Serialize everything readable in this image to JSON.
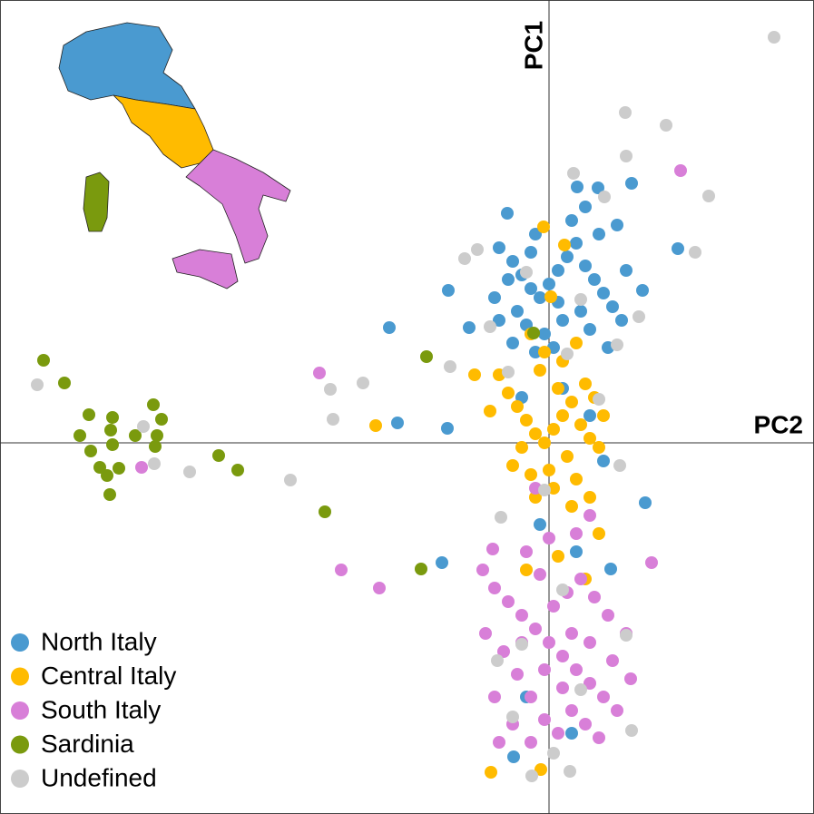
{
  "chart_data": {
    "type": "scatter",
    "x_label": "PC2",
    "y_label": "PC1",
    "xlim": [
      -6.05,
      2.92
    ],
    "ylim": [
      -4.09,
      4.88
    ],
    "legend": "bottom-left",
    "series": [
      {
        "name": "North Italy",
        "color": "#4a9ad0",
        "x": [
          -1.76,
          -1.67,
          -1.12,
          -1.18,
          1.06,
          1.42,
          0.91,
          -0.46,
          -1.11,
          -0.88,
          0.31,
          0.54,
          0.68,
          0.25,
          -0.39,
          -0.25,
          -0.55,
          -0.4,
          -0.3,
          -0.2,
          -0.1,
          0.0,
          0.1,
          0.2,
          0.3,
          0.4,
          0.5,
          0.6,
          0.7,
          0.8,
          0.55,
          0.25,
          -0.15,
          -0.45,
          -0.6,
          -0.35,
          -0.25,
          -0.05,
          0.15,
          0.35,
          0.45,
          0.65,
          0.05,
          -0.15,
          -0.4,
          -0.55,
          0.1,
          -0.2,
          0.4,
          1.03,
          0.85,
          0.75,
          0.15,
          -0.3,
          0.45,
          0.6,
          -0.1,
          0.3
        ],
        "y": [
          1.27,
          0.22,
          0.16,
          -1.32,
          -0.66,
          2.14,
          2.86,
          2.53,
          1.68,
          1.27,
          2.82,
          2.81,
          -1.39,
          -3.2,
          -3.46,
          -2.8,
          2.15,
          2.0,
          1.85,
          1.7,
          1.6,
          1.75,
          1.9,
          2.05,
          2.2,
          1.95,
          1.8,
          1.65,
          1.5,
          1.35,
          2.3,
          2.45,
          2.3,
          1.8,
          1.6,
          1.45,
          1.3,
          1.2,
          1.35,
          1.45,
          1.25,
          1.05,
          1.05,
          1.0,
          1.1,
          1.35,
          1.55,
          2.1,
          2.6,
          1.68,
          1.9,
          2.4,
          0.6,
          0.5,
          0.3,
          -0.2,
          -0.9,
          -1.2
        ]
      },
      {
        "name": "Central Italy",
        "color": "#ffbb00",
        "x": [
          -1.91,
          -0.82,
          -0.64,
          -0.09,
          -0.06,
          0.17,
          0.02,
          -0.45,
          -0.35,
          -0.25,
          -0.15,
          -0.05,
          0.05,
          0.15,
          0.25,
          0.35,
          0.45,
          0.55,
          0.6,
          -0.3,
          -0.4,
          -0.2,
          0.0,
          0.2,
          0.3,
          0.1,
          -0.1,
          -0.55,
          0.4,
          0.05,
          -0.15,
          0.25,
          0.45,
          -0.05,
          0.15,
          -0.2,
          0.3,
          -0.25,
          0.1,
          0.4,
          0.55,
          -0.65,
          0.5
        ],
        "y": [
          0.19,
          0.75,
          -3.63,
          -3.6,
          2.38,
          2.18,
          1.61,
          0.55,
          0.4,
          0.25,
          0.1,
          0.0,
          0.15,
          0.3,
          0.45,
          0.2,
          0.05,
          -0.05,
          0.3,
          -0.05,
          -0.25,
          -0.35,
          -0.3,
          -0.15,
          -0.4,
          0.6,
          0.8,
          0.75,
          0.65,
          -0.5,
          -0.6,
          -0.7,
          -0.6,
          1.0,
          0.9,
          1.2,
          1.1,
          -1.4,
          -1.25,
          -1.5,
          -1.0,
          0.35,
          0.5
        ]
      },
      {
        "name": "South Italy",
        "color": "#d87fd8",
        "x": [
          1.45,
          -2.53,
          -4.49,
          -2.29,
          -1.87,
          1.13,
          -0.62,
          -0.73,
          -0.6,
          -0.45,
          -0.3,
          -0.15,
          0.0,
          0.15,
          0.3,
          0.45,
          0.6,
          0.75,
          -0.5,
          -0.35,
          -0.2,
          -0.05,
          0.1,
          0.25,
          0.4,
          0.55,
          0.7,
          0.85,
          0.65,
          0.5,
          0.35,
          0.2,
          0.05,
          -0.1,
          -0.25,
          0.0,
          0.3,
          -0.6,
          -0.4,
          -0.2,
          0.15,
          -0.05,
          0.25,
          -0.3,
          0.9,
          -0.7,
          -0.55,
          0.45,
          -0.15,
          0.45
        ],
        "y": [
          3.0,
          0.77,
          -0.27,
          -1.4,
          -1.6,
          -1.32,
          -1.17,
          -1.4,
          -1.6,
          -1.75,
          -1.9,
          -2.05,
          -2.2,
          -2.35,
          -2.5,
          -2.65,
          -2.8,
          -2.95,
          -2.3,
          -2.55,
          -2.8,
          -3.05,
          -3.2,
          -2.95,
          -3.1,
          -3.25,
          -2.4,
          -2.1,
          -1.9,
          -1.7,
          -1.5,
          -1.65,
          -1.8,
          -1.45,
          -1.2,
          -1.05,
          -1.0,
          -2.8,
          -3.1,
          -3.3,
          -2.7,
          -2.5,
          -2.1,
          -2.2,
          -2.6,
          -2.1,
          -3.3,
          -2.2,
          -0.5,
          -0.8
        ]
      },
      {
        "name": "Sardinia",
        "color": "#7a9a0e",
        "x": [
          -5.57,
          -5.34,
          -5.07,
          -4.81,
          -4.36,
          -4.27,
          -5.17,
          -4.83,
          -4.56,
          -4.32,
          -5.05,
          -4.81,
          -4.87,
          -4.74,
          -4.95,
          -4.84,
          -4.34,
          -3.64,
          -3.43,
          -2.47,
          -1.41,
          -1.35,
          -0.17
        ],
        "y": [
          0.91,
          0.66,
          0.31,
          0.28,
          0.42,
          0.26,
          0.08,
          0.14,
          0.08,
          0.08,
          -0.09,
          -0.02,
          -0.36,
          -0.28,
          -0.27,
          -0.57,
          -0.04,
          -0.14,
          -0.3,
          -0.76,
          -1.39,
          0.95,
          1.21
        ]
      },
      {
        "name": "Undefined",
        "color": "#cccccc",
        "x": [
          2.48,
          0.84,
          1.29,
          1.76,
          1.61,
          -5.64,
          -4.47,
          -4.35,
          -3.96,
          -2.85,
          -2.41,
          -2.05,
          -2.38,
          -1.09,
          -0.93,
          -0.79,
          0.27,
          0.61,
          0.85,
          0.99,
          0.78,
          0.91,
          0.23,
          -0.19,
          -0.57,
          -0.53,
          -0.25,
          0.35,
          0.55,
          -0.05,
          0.15,
          -0.3,
          0.35,
          -0.4,
          0.05,
          0.85,
          -0.45,
          0.2,
          -0.65,
          0.75
        ],
        "y": [
          4.47,
          3.64,
          3.5,
          2.72,
          2.1,
          0.64,
          0.18,
          -0.23,
          -0.32,
          -0.41,
          0.59,
          0.66,
          0.26,
          0.84,
          2.03,
          2.13,
          2.97,
          2.71,
          3.16,
          1.39,
          -0.25,
          -3.17,
          -3.62,
          -3.67,
          -2.4,
          -0.82,
          1.88,
          1.58,
          0.48,
          -0.52,
          -1.62,
          -2.22,
          -2.72,
          -3.02,
          -3.42,
          -2.12,
          0.78,
          0.98,
          1.28,
          1.08
        ]
      }
    ]
  }
}
